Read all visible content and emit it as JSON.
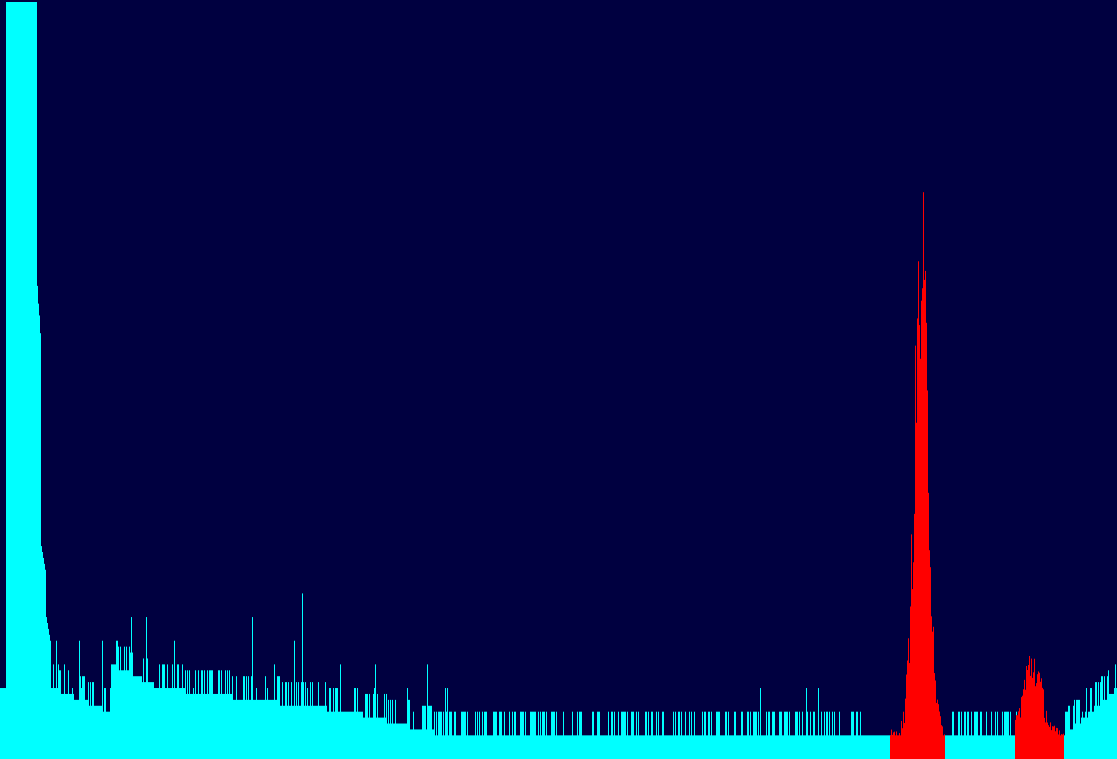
{
  "chart_data": {
    "type": "bar",
    "title": "",
    "xlabel": "",
    "ylabel": "",
    "grid": false,
    "legend": "none",
    "colors": {
      "background": "#000040",
      "baseline_series": "#00ffff",
      "highlight_series": "#ff0000"
    },
    "bin_count": 1117,
    "ylim": [
      0,
      32
    ],
    "series": [
      {
        "color_key": "baseline_series",
        "envelope": [
          {
            "x": [
              0,
              5
            ],
            "values": [
              3,
              3
            ]
          },
          {
            "x": [
              6,
              36
            ],
            "values": [
              32,
              32
            ]
          },
          {
            "x": [
              37,
              40
            ],
            "values": [
              20,
              18
            ]
          },
          {
            "x": [
              41,
              45
            ],
            "values": [
              9,
              8
            ]
          },
          {
            "x": [
              46,
              50
            ],
            "values": [
              6,
              5
            ]
          },
          {
            "x": [
              51,
              110
            ],
            "values": [
              3,
              2
            ]
          },
          {
            "x": [
              111,
              160
            ],
            "values": [
              4,
              3
            ]
          },
          {
            "x": [
              161,
              350
            ],
            "values": [
              3,
              2
            ]
          },
          {
            "x": [
              351,
              445
            ],
            "values": [
              2,
              1
            ]
          },
          {
            "x": [
              446,
              890
            ],
            "values": [
              1,
              1
            ]
          },
          {
            "x": [
              945,
              1015
            ],
            "values": [
              1,
              1
            ]
          },
          {
            "x": [
              1064,
              1117
            ],
            "values": [
              1,
              3
            ]
          }
        ],
        "spikes": [
          {
            "x": [
              52,
              110
            ],
            "values": [
              5,
              6
            ]
          },
          {
            "x": [
              112,
              200
            ],
            "values": [
              6,
              7
            ]
          },
          {
            "x": [
              201,
              340
            ],
            "values": [
              6,
              7
            ]
          },
          {
            "x": [
              341,
              460
            ],
            "values": [
              4,
              4
            ]
          },
          {
            "x": [
              461,
              860
            ],
            "values": [
              2,
              3
            ]
          },
          {
            "x": [
              946,
              1020
            ],
            "values": [
              2,
              2
            ]
          },
          {
            "x": [
              1065,
              1117
            ],
            "values": [
              2,
              5
            ]
          }
        ]
      },
      {
        "color_key": "highlight_series",
        "peaks": [
          {
            "x_range": [
              890,
              944
            ],
            "center": 921,
            "peak": 20,
            "width": 7,
            "base": 1
          },
          {
            "x_range": [
              1015,
              1063
            ],
            "center": 1032,
            "peak": 4,
            "width": 9,
            "base": 1
          }
        ]
      }
    ]
  }
}
